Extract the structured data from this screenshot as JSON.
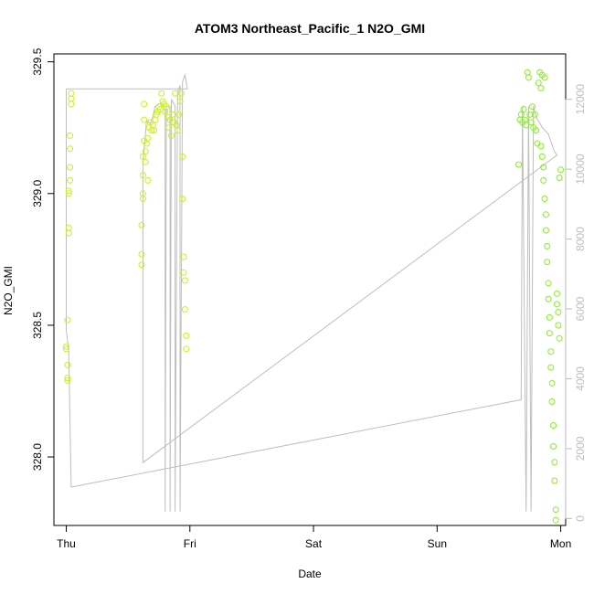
{
  "chart_data": {
    "type": "scatter",
    "title": "ATOM3 Northeast_Pacific_1 N2O_GMI",
    "xlabel": "Date",
    "ylabel": "N2O_GMI",
    "x_ticks": [
      "Thu",
      "Fri",
      "Sat",
      "Sun",
      "Mon"
    ],
    "xlim": [
      -0.1,
      4.04
    ],
    "ylim": [
      327.74,
      329.53
    ],
    "y_ticks": [
      328.0,
      328.5,
      329.0,
      329.5
    ],
    "y_tick_labels": [
      "328.0",
      "328.5",
      "329.0",
      "329.5"
    ],
    "y2lim": [
      -200,
      13300
    ],
    "y2_ticks": [
      0,
      2000,
      4000,
      6000,
      8000,
      10000,
      12000
    ],
    "y2_tick_labels": [
      "0",
      "2000",
      "4000",
      "6000",
      "8000",
      "10000",
      "12000"
    ],
    "grid": false,
    "colors": {
      "early": "#ccee22",
      "late": "#88ee22",
      "altitude_line": "#bebebe",
      "axis": "#000000"
    },
    "series": [
      {
        "role": "n2o",
        "marker": "circle-open",
        "points": [
          [
            0.0,
            328.42
          ],
          [
            0.0,
            328.41
          ],
          [
            0.01,
            328.35
          ],
          [
            0.01,
            328.3
          ],
          [
            0.01,
            328.29
          ],
          [
            0.01,
            328.52
          ],
          [
            0.02,
            328.87
          ],
          [
            0.02,
            328.85
          ],
          [
            0.02,
            329.0
          ],
          [
            0.02,
            329.01
          ],
          [
            0.03,
            329.05
          ],
          [
            0.03,
            329.1
          ],
          [
            0.03,
            329.17
          ],
          [
            0.03,
            329.22
          ],
          [
            0.04,
            329.34
          ],
          [
            0.04,
            329.36
          ],
          [
            0.04,
            329.38
          ],
          [
            0.61,
            328.73
          ],
          [
            0.61,
            328.77
          ],
          [
            0.61,
            328.88
          ],
          [
            0.62,
            328.98
          ],
          [
            0.62,
            329.0
          ],
          [
            0.62,
            329.07
          ],
          [
            0.62,
            329.14
          ],
          [
            0.63,
            329.2
          ],
          [
            0.63,
            329.28
          ],
          [
            0.63,
            329.34
          ],
          [
            0.64,
            329.16
          ],
          [
            0.64,
            329.12
          ],
          [
            0.65,
            329.19
          ],
          [
            0.66,
            329.05
          ],
          [
            0.66,
            329.21
          ],
          [
            0.67,
            329.25
          ],
          [
            0.68,
            329.27
          ],
          [
            0.69,
            329.24
          ],
          [
            0.7,
            329.26
          ],
          [
            0.71,
            329.24
          ],
          [
            0.72,
            329.28
          ],
          [
            0.73,
            329.3
          ],
          [
            0.74,
            329.31
          ],
          [
            0.75,
            329.33
          ],
          [
            0.76,
            329.32
          ],
          [
            0.77,
            329.38
          ],
          [
            0.78,
            329.35
          ],
          [
            0.79,
            329.34
          ],
          [
            0.8,
            329.31
          ],
          [
            0.81,
            329.33
          ],
          [
            0.82,
            329.29
          ],
          [
            0.83,
            329.25
          ],
          [
            0.84,
            329.28
          ],
          [
            0.85,
            329.22
          ],
          [
            0.86,
            329.3
          ],
          [
            0.87,
            329.27
          ],
          [
            0.88,
            329.38
          ],
          [
            0.89,
            329.26
          ],
          [
            0.9,
            329.24
          ],
          [
            0.91,
            329.3
          ],
          [
            0.92,
            329.35
          ],
          [
            0.93,
            329.38
          ],
          [
            0.94,
            328.98
          ],
          [
            0.94,
            329.14
          ],
          [
            0.95,
            328.76
          ],
          [
            0.95,
            328.7
          ],
          [
            0.96,
            328.67
          ],
          [
            0.96,
            328.56
          ],
          [
            0.97,
            328.46
          ],
          [
            0.97,
            328.41
          ],
          [
            3.66,
            329.11
          ],
          [
            3.67,
            329.28
          ],
          [
            3.68,
            329.3
          ],
          [
            3.69,
            329.27
          ],
          [
            3.7,
            329.32
          ],
          [
            3.71,
            329.28
          ],
          [
            3.72,
            329.26
          ],
          [
            3.73,
            329.46
          ],
          [
            3.74,
            329.44
          ],
          [
            3.75,
            329.3
          ],
          [
            3.76,
            329.27
          ],
          [
            3.77,
            329.33
          ],
          [
            3.78,
            329.25
          ],
          [
            3.79,
            329.3
          ],
          [
            3.8,
            329.24
          ],
          [
            3.81,
            329.19
          ],
          [
            3.82,
            329.42
          ],
          [
            3.83,
            329.46
          ],
          [
            3.84,
            329.18
          ],
          [
            3.84,
            329.4
          ],
          [
            3.85,
            329.14
          ],
          [
            3.85,
            329.45
          ],
          [
            3.86,
            329.1
          ],
          [
            3.86,
            329.05
          ],
          [
            3.87,
            328.98
          ],
          [
            3.87,
            329.44
          ],
          [
            3.88,
            328.92
          ],
          [
            3.88,
            328.86
          ],
          [
            3.89,
            328.8
          ],
          [
            3.89,
            328.74
          ],
          [
            3.9,
            328.66
          ],
          [
            3.9,
            328.6
          ],
          [
            3.91,
            328.53
          ],
          [
            3.91,
            328.47
          ],
          [
            3.92,
            328.4
          ],
          [
            3.92,
            328.34
          ],
          [
            3.93,
            328.28
          ],
          [
            3.93,
            328.21
          ],
          [
            3.94,
            328.12
          ],
          [
            3.94,
            328.04
          ],
          [
            3.95,
            327.98
          ],
          [
            3.95,
            327.91
          ],
          [
            3.96,
            327.8
          ],
          [
            3.96,
            327.76
          ],
          [
            3.97,
            328.58
          ],
          [
            3.97,
            328.62
          ],
          [
            3.98,
            328.55
          ],
          [
            3.98,
            328.5
          ],
          [
            3.99,
            328.45
          ],
          [
            3.99,
            329.06
          ],
          [
            4.0,
            329.09
          ]
        ]
      },
      {
        "role": "altitude",
        "line": true,
        "points": [
          [
            0.0,
            12300
          ],
          [
            0.0,
            5400
          ],
          [
            0.02,
            4800
          ],
          [
            0.04,
            900
          ],
          [
            3.68,
            3400
          ],
          [
            3.69,
            11800
          ],
          [
            3.72,
            200
          ],
          [
            3.74,
            11800
          ],
          [
            3.76,
            200
          ],
          [
            3.78,
            11800
          ],
          [
            3.8,
            11500
          ],
          [
            3.85,
            11200
          ],
          [
            3.9,
            11000
          ],
          [
            3.93,
            10700
          ],
          [
            3.95,
            10500
          ],
          [
            3.97,
            10400
          ],
          [
            0.62,
            1600
          ],
          [
            0.62,
            10200
          ],
          [
            0.65,
            11400
          ],
          [
            0.68,
            11300
          ],
          [
            0.7,
            11500
          ],
          [
            0.72,
            11800
          ],
          [
            0.77,
            11900
          ],
          [
            0.8,
            11700
          ],
          [
            0.8,
            200
          ],
          [
            0.81,
            11800
          ],
          [
            0.84,
            11800
          ],
          [
            0.84,
            200
          ],
          [
            0.85,
            12000
          ],
          [
            0.88,
            11800
          ],
          [
            0.88,
            200
          ],
          [
            0.9,
            12200
          ],
          [
            0.92,
            12400
          ],
          [
            0.92,
            200
          ],
          [
            0.94,
            12500
          ],
          [
            0.96,
            12700
          ],
          [
            0.98,
            12300
          ],
          [
            0.0,
            12300
          ],
          [
            0.98,
            12300
          ]
        ]
      }
    ]
  }
}
